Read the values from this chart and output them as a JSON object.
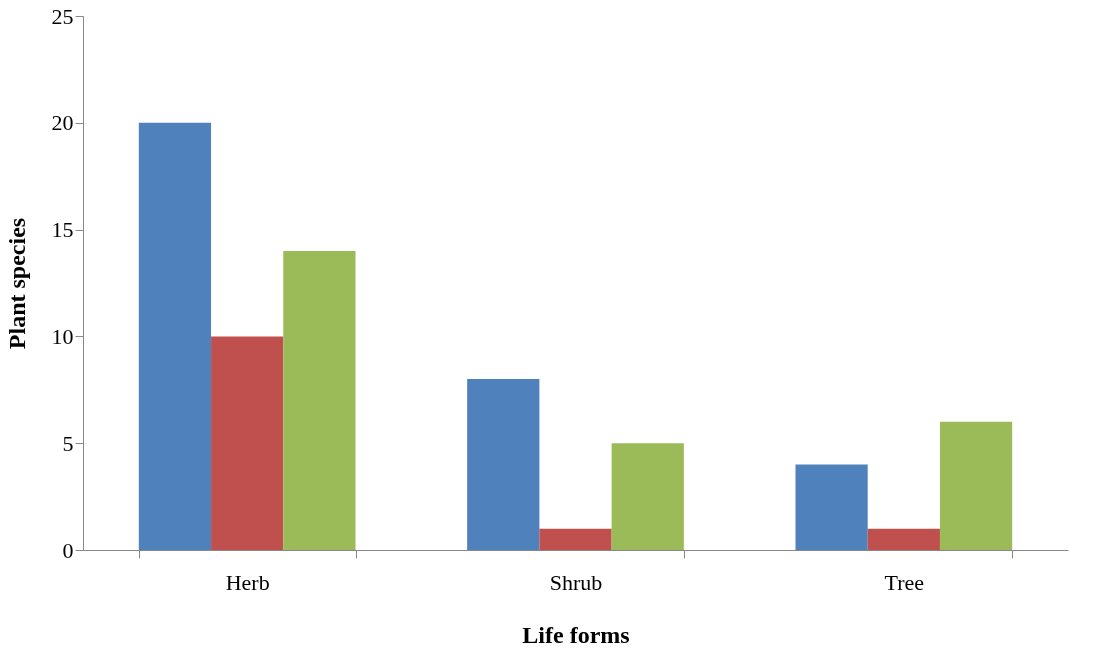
{
  "chart_data": {
    "type": "bar",
    "xlabel": "Life forms",
    "ylabel": "Plant species",
    "categories": [
      "Herb",
      "Shrub",
      "Tree"
    ],
    "series": [
      {
        "color": "#4f81bd",
        "values": [
          20,
          8,
          4
        ]
      },
      {
        "color": "#c0504d",
        "values": [
          10,
          1,
          1
        ]
      },
      {
        "color": "#9bbb59",
        "values": [
          14,
          5,
          6
        ]
      }
    ],
    "ylim": [
      0,
      25
    ],
    "yticks": [
      0,
      5,
      10,
      15,
      20,
      25
    ]
  }
}
